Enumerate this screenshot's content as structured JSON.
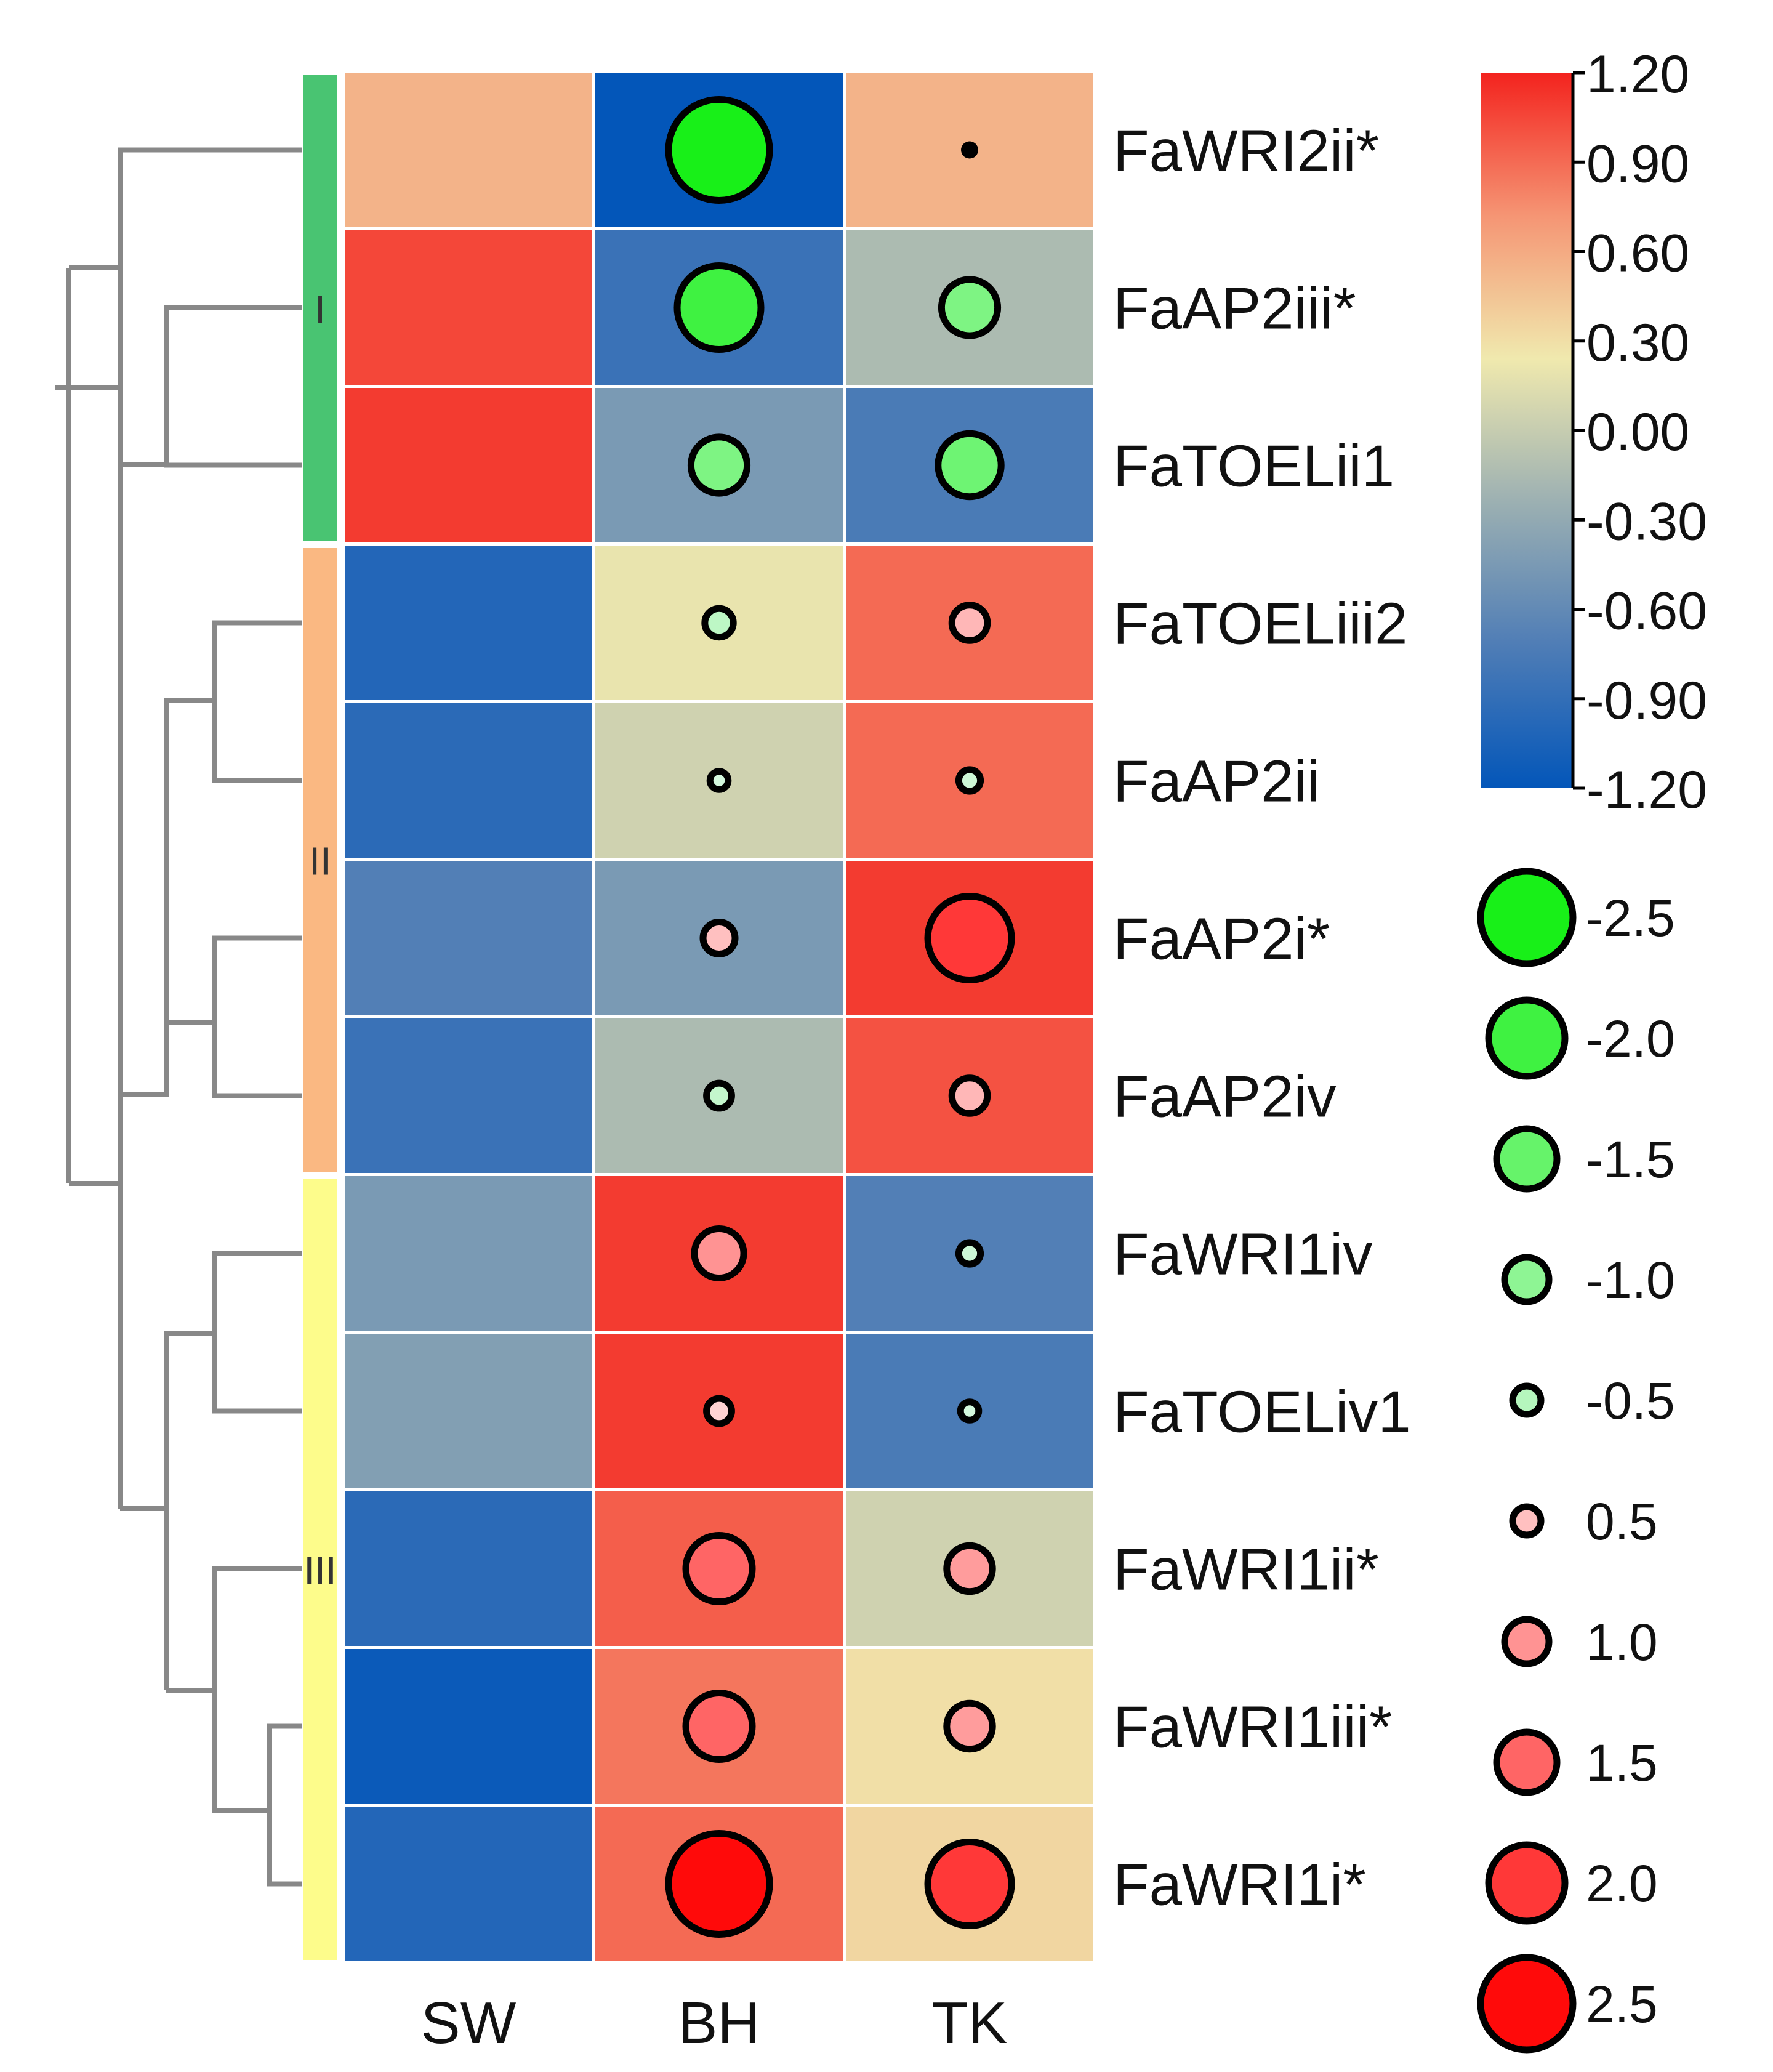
{
  "chart_data": {
    "type": "heatmap",
    "title": "",
    "columns": [
      "SW",
      "BH",
      "TK"
    ],
    "rows": [
      {
        "gene": "FaWRI2ii*",
        "values": [
          0.55,
          -1.2,
          0.55
        ],
        "dots": [
          null,
          -2.5,
          0.0
        ]
      },
      {
        "gene": "FaAP2iii*",
        "values": [
          1.05,
          -0.85,
          -0.15
        ],
        "dots": [
          null,
          -2.0,
          -1.2
        ]
      },
      {
        "gene": "FaTOELii1",
        "values": [
          1.1,
          -0.45,
          -0.75
        ],
        "dots": [
          null,
          -1.2,
          -1.4
        ]
      },
      {
        "gene": "FaTOELiii2",
        "values": [
          -1.0,
          0.2,
          0.9
        ],
        "dots": [
          null,
          -0.4,
          0.6
        ]
      },
      {
        "gene": "FaAP2ii",
        "values": [
          -0.95,
          0.05,
          0.9
        ],
        "dots": [
          null,
          -0.1,
          -0.2
        ]
      },
      {
        "gene": "FaAP2i*",
        "values": [
          -0.7,
          -0.45,
          1.1
        ],
        "dots": [
          null,
          0.5,
          2.0
        ]
      },
      {
        "gene": "FaAP2iv",
        "values": [
          -0.85,
          -0.15,
          1.0
        ],
        "dots": [
          null,
          -0.3,
          0.6
        ]
      },
      {
        "gene": "FaWRI1iv",
        "values": [
          -0.45,
          1.1,
          -0.7
        ],
        "dots": [
          null,
          1.0,
          -0.2
        ]
      },
      {
        "gene": "FaTOELiv1",
        "values": [
          -0.4,
          1.1,
          -0.75
        ],
        "dots": [
          null,
          0.3,
          -0.1
        ]
      },
      {
        "gene": "FaWRI1ii*",
        "values": [
          -0.95,
          0.95,
          0.05
        ],
        "dots": [
          null,
          1.5,
          0.9
        ]
      },
      {
        "gene": "FaWRI1iii*",
        "values": [
          -1.15,
          0.85,
          0.3
        ],
        "dots": [
          null,
          1.5,
          0.9
        ]
      },
      {
        "gene": "FaWRI1i*",
        "values": [
          -1.0,
          0.9,
          0.35
        ],
        "dots": [
          null,
          2.5,
          2.0
        ]
      }
    ],
    "clusters": [
      {
        "label": "I",
        "start": 0,
        "end": 2,
        "color": "#49c472"
      },
      {
        "label": "II",
        "start": 3,
        "end": 6,
        "color": "#fab882"
      },
      {
        "label": "III",
        "start": 7,
        "end": 11,
        "color": "#fdfc8b"
      }
    ],
    "colorbar": {
      "min": -1.2,
      "max": 1.2,
      "ticks": [
        "1.20",
        "0.90",
        "0.60",
        "0.30",
        "0.00",
        "-0.30",
        "-0.60",
        "-0.90",
        "-1.20"
      ],
      "stops": [
        "#0356b9",
        "#4f7db6",
        "#9cb0b2",
        "#f0e9ae",
        "#f59574",
        "#f3231e"
      ]
    },
    "size_legend": {
      "labels": [
        "-2.5",
        "-2.0",
        "-1.5",
        "-1.0",
        "-0.5",
        "0.5",
        "1.0",
        "1.5",
        "2.0",
        "2.5"
      ],
      "values": [
        -2.5,
        -2.0,
        -1.5,
        -1.0,
        -0.5,
        0.5,
        1.0,
        1.5,
        2.0,
        2.5
      ]
    }
  }
}
